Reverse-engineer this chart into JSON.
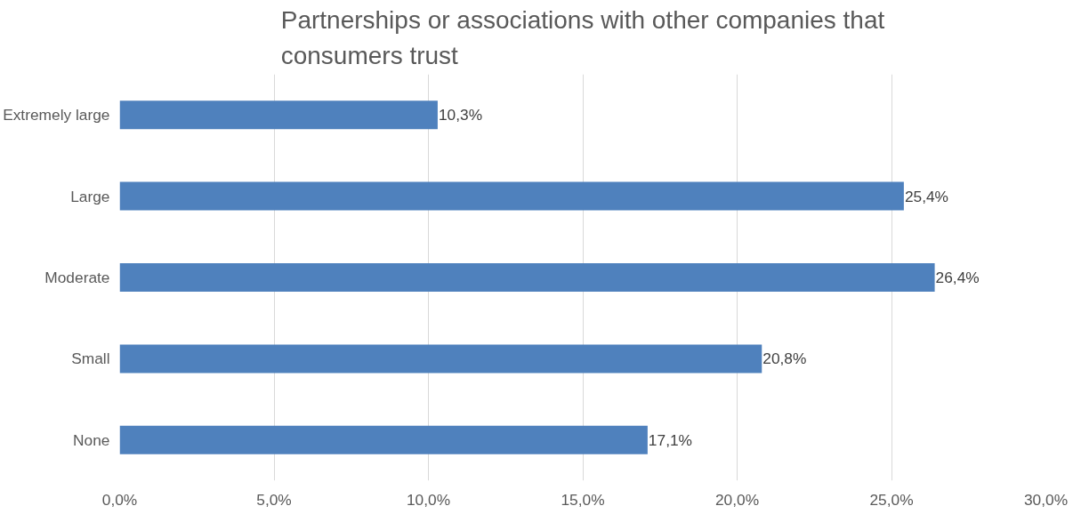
{
  "chart_data": {
    "type": "bar",
    "orientation": "horizontal",
    "title": "Partnerships or associations with other companies that consumers trust",
    "categories": [
      "Extremely large",
      "Large",
      "Moderate",
      "Small",
      "None"
    ],
    "values": [
      10.3,
      25.4,
      26.4,
      20.8,
      17.1
    ],
    "value_labels": [
      "10,3%",
      "25,4%",
      "26,4%",
      "20,8%",
      "17,1%"
    ],
    "color": "#4f81bd",
    "xlim": [
      0,
      30
    ],
    "xticks": [
      {
        "value": 0,
        "label": "0,0%"
      },
      {
        "value": 5,
        "label": "5,0%"
      },
      {
        "value": 10,
        "label": "10,0%"
      },
      {
        "value": 15,
        "label": "15,0%"
      },
      {
        "value": 20,
        "label": "20,0%"
      },
      {
        "value": 25,
        "label": "25,0%"
      },
      {
        "value": 30,
        "label": "30,0%"
      }
    ],
    "grid": "x"
  }
}
